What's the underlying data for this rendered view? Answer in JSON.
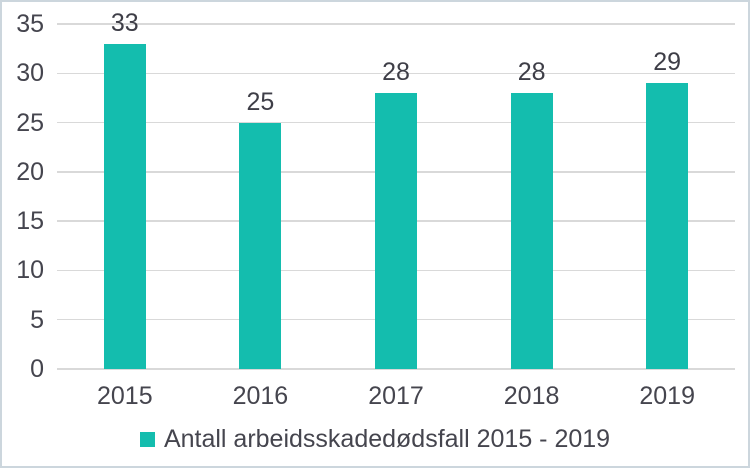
{
  "chart_data": {
    "type": "bar",
    "title": "",
    "categories": [
      "2015",
      "2016",
      "2017",
      "2018",
      "2019"
    ],
    "values": [
      33,
      25,
      28,
      28,
      29
    ],
    "bar_labels": [
      "33",
      "25",
      "28",
      "28",
      "29"
    ],
    "yticks": [
      0,
      5,
      10,
      15,
      20,
      25,
      30,
      35
    ],
    "ylim": [
      0,
      35
    ],
    "xlabel": "",
    "ylabel": "",
    "grid": true,
    "legend": "Antall arbeidsskadedødsfall 2015 - 2019",
    "legend_position": "bottom-center",
    "colors": {
      "bar": "#14bdae",
      "grid": "#d9d9d9",
      "text": "#45454e",
      "value_text": "#3e3e47",
      "frame_border": "#ccd6dd",
      "background": "#ffffff"
    }
  }
}
